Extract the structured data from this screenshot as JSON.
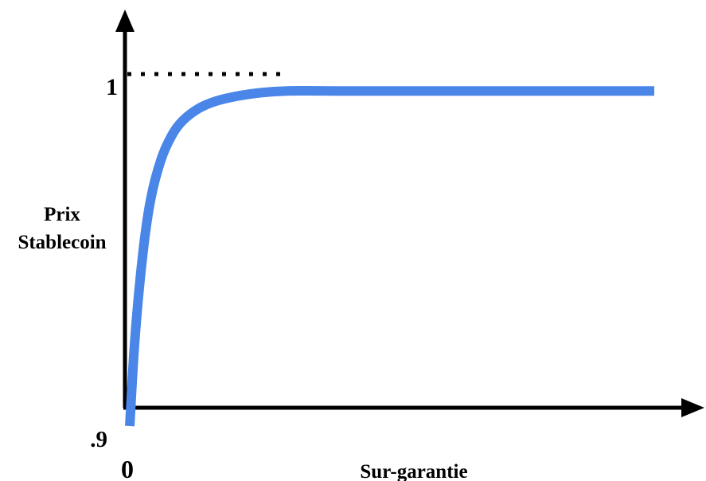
{
  "chart_data": {
    "type": "line",
    "title": "",
    "xlabel": "Sur-garantie",
    "ylabel": [
      "Prix",
      "Stablecoin"
    ],
    "x_tick_labels": [
      "0"
    ],
    "y_tick_labels": [
      ".9",
      "1"
    ],
    "ylim": [
      0.9,
      1.0
    ],
    "xlim": [
      0,
      10
    ],
    "reference_line": {
      "y": 1,
      "style": "dotted"
    },
    "series": [
      {
        "color": "#4a86e8",
        "x": [
          0,
          0.1,
          0.25,
          0.4,
          0.6,
          0.8,
          1.0,
          1.3,
          1.6,
          2.0,
          2.5,
          3.0,
          4.0,
          5.0,
          6.0,
          7.0,
          8.0,
          9.0,
          10.0
        ],
        "y": [
          0.9,
          0.925,
          0.949,
          0.9645,
          0.9758,
          0.9825,
          0.9866,
          0.9901,
          0.9921,
          0.9936,
          0.9947,
          0.9952,
          0.9952,
          0.9952,
          0.9952,
          0.9952,
          0.9952,
          0.9952,
          0.9952
        ]
      }
    ],
    "axis_arrows": true,
    "grid": false,
    "legend": "none"
  }
}
